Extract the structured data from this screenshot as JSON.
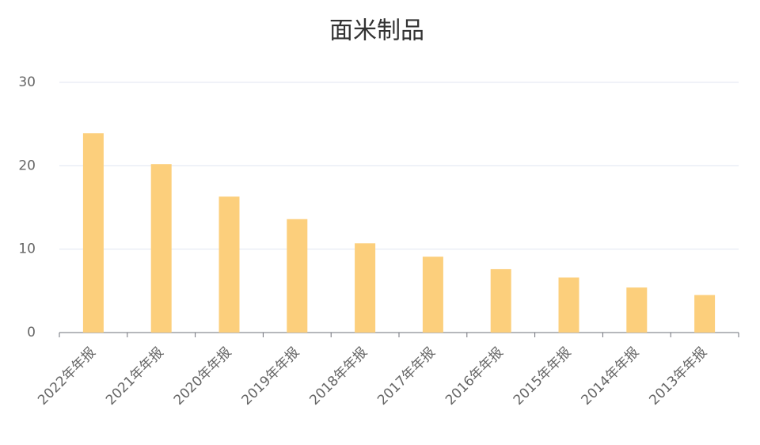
{
  "chart_data": {
    "type": "bar",
    "title": "面米制品",
    "categories": [
      "2022年年报",
      "2021年年报",
      "2020年年报",
      "2019年年报",
      "2018年年报",
      "2017年年报",
      "2016年年报",
      "2015年年报",
      "2014年年报",
      "2013年年报"
    ],
    "values": [
      23.9,
      20.2,
      16.3,
      13.6,
      10.7,
      9.1,
      7.6,
      6.6,
      5.4,
      4.5
    ],
    "color": "#fccf7c",
    "ylim": [
      0,
      30
    ],
    "yticks": [
      0,
      10,
      20,
      30
    ],
    "grid": true
  }
}
